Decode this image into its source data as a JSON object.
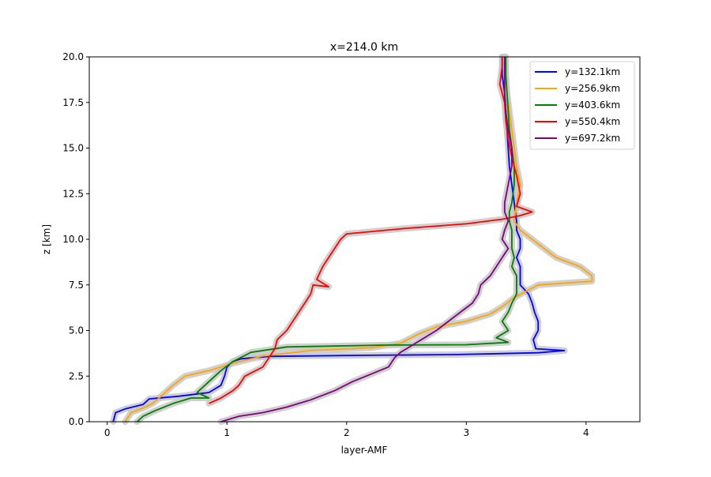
{
  "chart_data": {
    "type": "line",
    "title": "x=214.0 km",
    "xlabel": "layer-AMF",
    "ylabel": "z [km]",
    "xlim": [
      -0.15,
      4.45
    ],
    "ylim": [
      0,
      20
    ],
    "xticks": [
      0,
      1,
      2,
      3,
      4
    ],
    "xtick_labels": [
      "0",
      "1",
      "2",
      "3",
      "4"
    ],
    "yticks": [
      0,
      2.5,
      5,
      7.5,
      10,
      12.5,
      15,
      17.5,
      20
    ],
    "ytick_labels": [
      "0.0",
      "2.5",
      "5.0",
      "7.5",
      "10.0",
      "12.5",
      "15.0",
      "17.5",
      "20.0"
    ],
    "grid": false,
    "legend_position": "top-right",
    "uncertainty_band_color": "#c8c8c8",
    "series": [
      {
        "name": "y=132.1km",
        "color": "#0000ff",
        "points": [
          [
            0.05,
            0
          ],
          [
            0.07,
            0.5
          ],
          [
            0.15,
            0.7
          ],
          [
            0.3,
            0.95
          ],
          [
            0.35,
            1.25
          ],
          [
            0.6,
            1.4
          ],
          [
            0.85,
            1.6
          ],
          [
            0.95,
            2.0
          ],
          [
            0.98,
            2.5
          ],
          [
            1.0,
            3.0
          ],
          [
            1.05,
            3.3
          ],
          [
            1.12,
            3.45
          ],
          [
            1.35,
            3.58
          ],
          [
            2.0,
            3.63
          ],
          [
            2.9,
            3.68
          ],
          [
            3.6,
            3.78
          ],
          [
            3.82,
            3.9
          ],
          [
            3.58,
            4.0
          ],
          [
            3.56,
            4.5
          ],
          [
            3.6,
            5.0
          ],
          [
            3.6,
            5.5
          ],
          [
            3.57,
            6.0
          ],
          [
            3.55,
            6.5
          ],
          [
            3.52,
            7.0
          ],
          [
            3.45,
            7.5
          ],
          [
            3.45,
            8.0
          ],
          [
            3.45,
            8.5
          ],
          [
            3.42,
            9.0
          ],
          [
            3.45,
            9.5
          ],
          [
            3.45,
            10.0
          ],
          [
            3.42,
            10.5
          ],
          [
            3.42,
            11.0
          ],
          [
            3.4,
            12.0
          ],
          [
            3.38,
            13.0
          ],
          [
            3.36,
            14.0
          ],
          [
            3.35,
            15.0
          ],
          [
            3.34,
            16.0
          ],
          [
            3.33,
            17.0
          ],
          [
            3.32,
            18.0
          ],
          [
            3.3,
            19.0
          ],
          [
            3.3,
            20.0
          ]
        ]
      },
      {
        "name": "y=256.9km",
        "color": "#ffa500",
        "points": [
          [
            0.15,
            0
          ],
          [
            0.2,
            0.5
          ],
          [
            0.3,
            0.75
          ],
          [
            0.38,
            1.0
          ],
          [
            0.45,
            1.4
          ],
          [
            0.55,
            2.0
          ],
          [
            0.65,
            2.5
          ],
          [
            0.85,
            2.8
          ],
          [
            1.05,
            3.2
          ],
          [
            1.3,
            3.6
          ],
          [
            1.7,
            3.9
          ],
          [
            2.2,
            4.05
          ],
          [
            2.45,
            4.3
          ],
          [
            2.6,
            4.8
          ],
          [
            2.75,
            5.2
          ],
          [
            3.0,
            5.5
          ],
          [
            3.2,
            5.9
          ],
          [
            3.3,
            6.3
          ],
          [
            3.4,
            6.8
          ],
          [
            3.6,
            7.5
          ],
          [
            4.05,
            7.7
          ],
          [
            4.05,
            8.0
          ],
          [
            3.95,
            8.5
          ],
          [
            3.75,
            9.0
          ],
          [
            3.65,
            9.5
          ],
          [
            3.55,
            10.0
          ],
          [
            3.45,
            10.5
          ],
          [
            3.4,
            11.0
          ],
          [
            3.42,
            12.0
          ],
          [
            3.45,
            13.0
          ],
          [
            3.42,
            14.0
          ],
          [
            3.4,
            15.0
          ],
          [
            3.38,
            16.0
          ],
          [
            3.36,
            17.0
          ],
          [
            3.34,
            18.0
          ],
          [
            3.33,
            19.0
          ],
          [
            3.32,
            20.0
          ]
        ]
      },
      {
        "name": "y=403.6km",
        "color": "#008000",
        "points": [
          [
            0.25,
            0
          ],
          [
            0.3,
            0.3
          ],
          [
            0.4,
            0.6
          ],
          [
            0.55,
            1.0
          ],
          [
            0.7,
            1.3
          ],
          [
            0.85,
            1.3
          ],
          [
            0.75,
            1.6
          ],
          [
            0.85,
            2.2
          ],
          [
            0.95,
            2.8
          ],
          [
            1.05,
            3.3
          ],
          [
            1.2,
            3.8
          ],
          [
            1.5,
            4.1
          ],
          [
            2.3,
            4.2
          ],
          [
            3.0,
            4.22
          ],
          [
            3.35,
            4.35
          ],
          [
            3.25,
            4.6
          ],
          [
            3.35,
            5.0
          ],
          [
            3.3,
            5.5
          ],
          [
            3.35,
            6.0
          ],
          [
            3.38,
            6.5
          ],
          [
            3.42,
            7.0
          ],
          [
            3.42,
            7.5
          ],
          [
            3.42,
            8.0
          ],
          [
            3.38,
            8.5
          ],
          [
            3.4,
            9.0
          ],
          [
            3.38,
            9.5
          ],
          [
            3.38,
            10.0
          ],
          [
            3.38,
            10.5
          ],
          [
            3.36,
            11.0
          ],
          [
            3.36,
            11.5
          ],
          [
            3.38,
            12.0
          ],
          [
            3.4,
            13.0
          ],
          [
            3.4,
            14.0
          ],
          [
            3.38,
            15.0
          ],
          [
            3.36,
            16.0
          ],
          [
            3.35,
            17.0
          ],
          [
            3.34,
            18.0
          ],
          [
            3.33,
            19.0
          ],
          [
            3.33,
            20.0
          ]
        ]
      },
      {
        "name": "y=550.4km",
        "color": "#ff0000",
        "points": [
          [
            0.85,
            1.0
          ],
          [
            0.95,
            1.3
          ],
          [
            1.05,
            1.7
          ],
          [
            1.1,
            2.0
          ],
          [
            1.15,
            2.5
          ],
          [
            1.3,
            3.0
          ],
          [
            1.35,
            3.5
          ],
          [
            1.4,
            4.0
          ],
          [
            1.42,
            4.5
          ],
          [
            1.5,
            5.0
          ],
          [
            1.55,
            5.5
          ],
          [
            1.6,
            6.0
          ],
          [
            1.65,
            6.5
          ],
          [
            1.7,
            7.0
          ],
          [
            1.72,
            7.5
          ],
          [
            1.85,
            7.4
          ],
          [
            1.75,
            7.8
          ],
          [
            1.8,
            8.5
          ],
          [
            1.85,
            9.0
          ],
          [
            1.9,
            9.5
          ],
          [
            1.95,
            10.0
          ],
          [
            2.0,
            10.3
          ],
          [
            2.5,
            10.6
          ],
          [
            3.0,
            10.85
          ],
          [
            3.3,
            11.1
          ],
          [
            3.45,
            11.3
          ],
          [
            3.55,
            11.5
          ],
          [
            3.42,
            11.8
          ],
          [
            3.45,
            12.5
          ],
          [
            3.42,
            13.5
          ],
          [
            3.38,
            14.5
          ],
          [
            3.35,
            15.5
          ],
          [
            3.33,
            16.5
          ],
          [
            3.32,
            17.5
          ],
          [
            3.28,
            18.5
          ],
          [
            3.3,
            19.5
          ],
          [
            3.3,
            20.0
          ]
        ]
      },
      {
        "name": "y=697.2km",
        "color": "#800080",
        "points": [
          [
            0.95,
            0
          ],
          [
            1.1,
            0.3
          ],
          [
            1.3,
            0.5
          ],
          [
            1.5,
            0.8
          ],
          [
            1.7,
            1.2
          ],
          [
            1.9,
            1.7
          ],
          [
            2.05,
            2.2
          ],
          [
            2.2,
            2.6
          ],
          [
            2.35,
            3.0
          ],
          [
            2.4,
            3.5
          ],
          [
            2.45,
            3.8
          ],
          [
            2.55,
            4.2
          ],
          [
            2.65,
            4.6
          ],
          [
            2.75,
            5.0
          ],
          [
            2.85,
            5.5
          ],
          [
            2.95,
            6.0
          ],
          [
            3.05,
            6.5
          ],
          [
            3.1,
            7.0
          ],
          [
            3.12,
            7.5
          ],
          [
            3.2,
            8.0
          ],
          [
            3.25,
            8.5
          ],
          [
            3.3,
            9.0
          ],
          [
            3.35,
            9.5
          ],
          [
            3.3,
            10.0
          ],
          [
            3.32,
            10.5
          ],
          [
            3.35,
            11.0
          ],
          [
            3.32,
            11.5
          ],
          [
            3.32,
            12.0
          ],
          [
            3.35,
            13.0
          ],
          [
            3.38,
            14.0
          ],
          [
            3.38,
            15.0
          ],
          [
            3.35,
            16.0
          ],
          [
            3.33,
            17.0
          ],
          [
            3.32,
            18.0
          ],
          [
            3.32,
            19.0
          ],
          [
            3.32,
            20.0
          ]
        ]
      }
    ]
  }
}
